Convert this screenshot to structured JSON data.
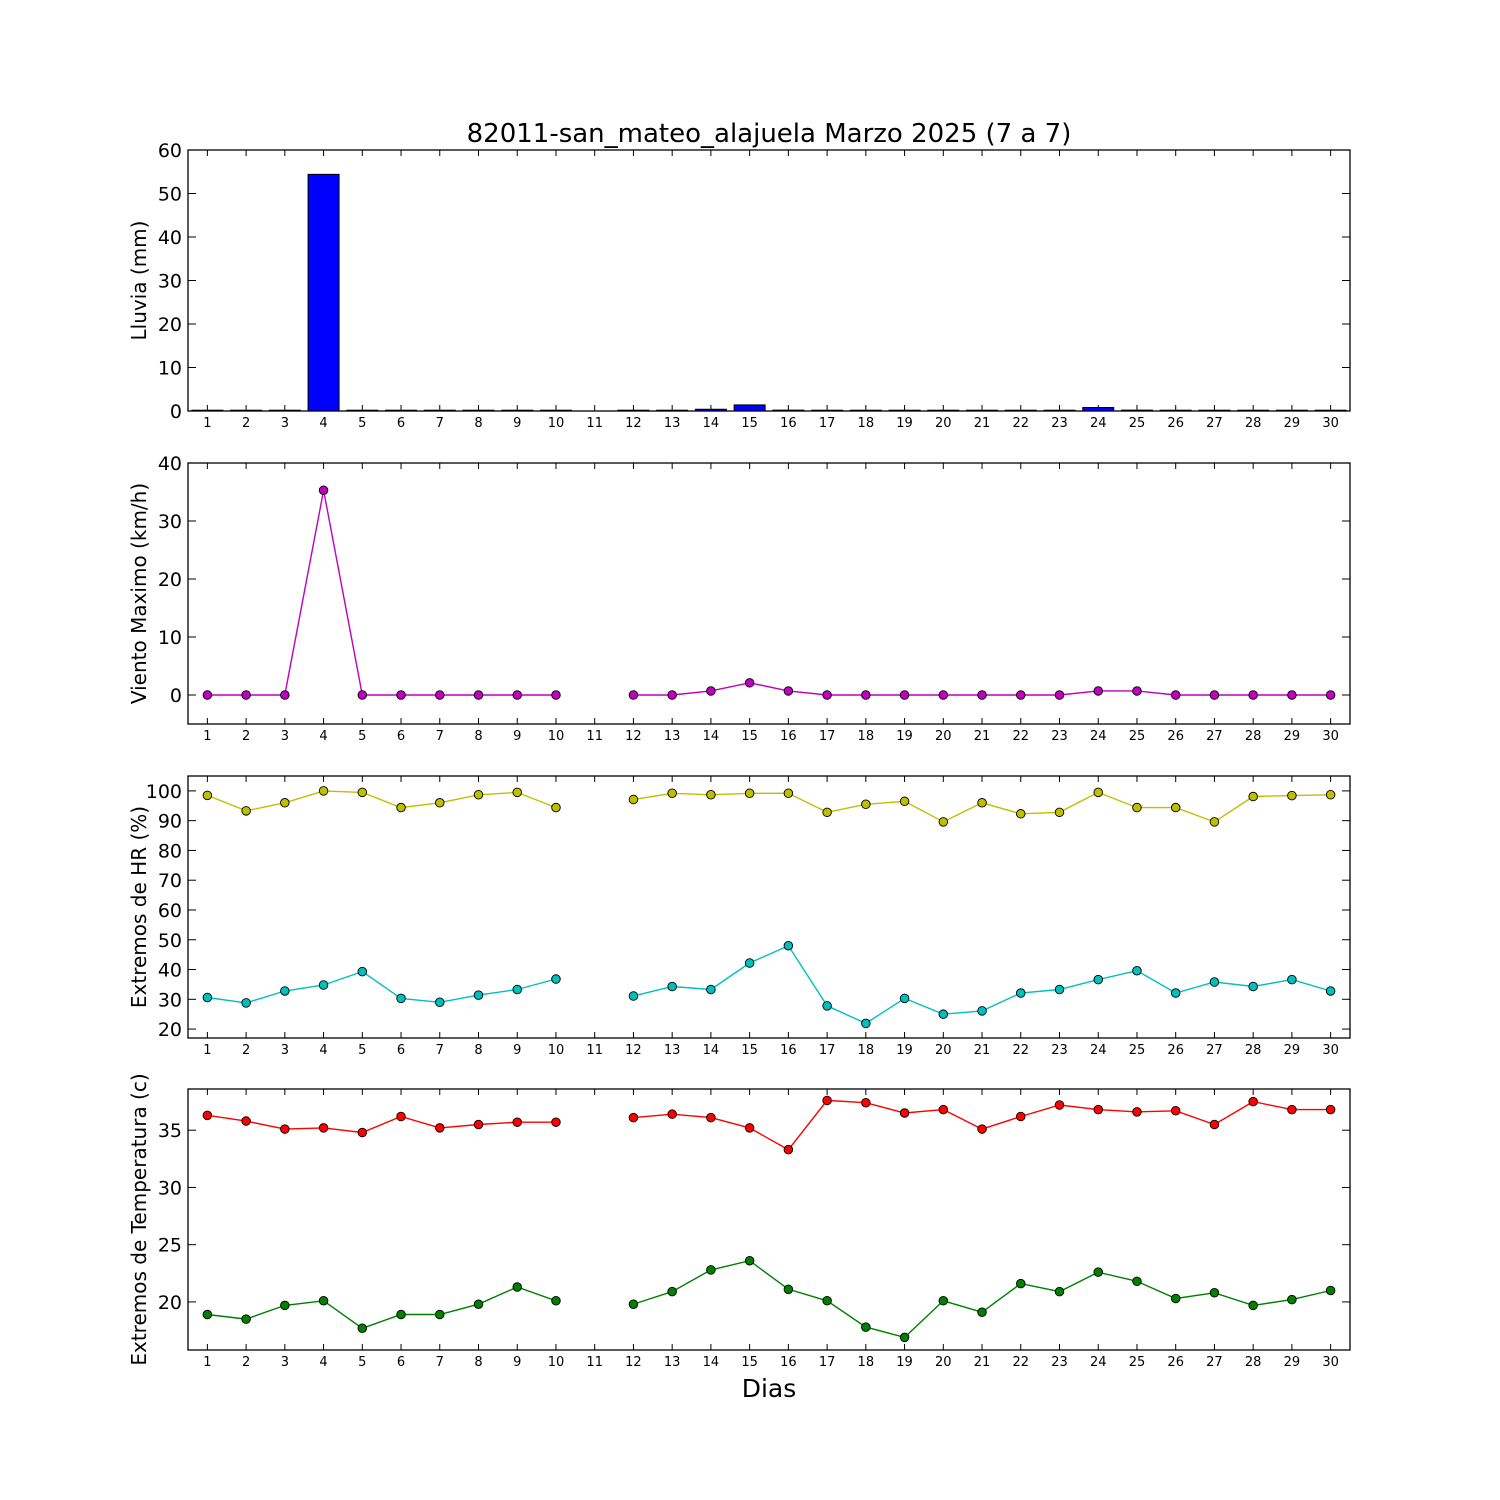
{
  "title": "82011-san_mateo_alajuela Marzo 2025  (7 a 7)",
  "xlabel": "Dias",
  "chart_data": [
    {
      "type": "bar",
      "ylabel": "Lluvia (mm)",
      "ylim": [
        0,
        60
      ],
      "yticks": [
        0,
        10,
        20,
        30,
        40,
        50,
        60
      ],
      "x": [
        1,
        2,
        3,
        4,
        5,
        6,
        7,
        8,
        9,
        10,
        11,
        12,
        13,
        14,
        15,
        16,
        17,
        18,
        19,
        20,
        21,
        22,
        23,
        24,
        25,
        26,
        27,
        28,
        29,
        30
      ],
      "xlim": [
        0.5,
        30.5
      ],
      "series": [
        {
          "color": "#0000ff",
          "values": [
            0,
            0,
            0,
            54.4,
            0,
            0,
            0,
            0,
            0,
            0,
            null,
            0,
            0,
            0.4,
            1.4,
            0.2,
            0,
            0,
            0,
            0,
            0,
            0,
            0,
            0.8,
            0.2,
            0,
            0,
            0,
            0,
            0
          ]
        }
      ]
    },
    {
      "type": "line",
      "ylabel": "Viento Maximo (km/h)",
      "ylim": [
        -5,
        40
      ],
      "yticks": [
        0,
        10,
        20,
        30,
        40
      ],
      "x": [
        1,
        2,
        3,
        4,
        5,
        6,
        7,
        8,
        9,
        10,
        11,
        12,
        13,
        14,
        15,
        16,
        17,
        18,
        19,
        20,
        21,
        22,
        23,
        24,
        25,
        26,
        27,
        28,
        29,
        30
      ],
      "xlim": [
        0.5,
        30.5
      ],
      "series": [
        {
          "color": "#bf00bf",
          "values": [
            0,
            0,
            0,
            35.3,
            0,
            0,
            0,
            0,
            0,
            0,
            null,
            0,
            0,
            0.7,
            2.1,
            0.7,
            0,
            0,
            0,
            0,
            0,
            0,
            0,
            0.7,
            0.7,
            0,
            0,
            0,
            0,
            0
          ]
        }
      ]
    },
    {
      "type": "line",
      "ylabel": "Extremos de HR (%)",
      "ylim": [
        17,
        105
      ],
      "yticks": [
        20,
        30,
        40,
        50,
        60,
        70,
        80,
        90,
        100
      ],
      "x": [
        1,
        2,
        3,
        4,
        5,
        6,
        7,
        8,
        9,
        10,
        11,
        12,
        13,
        14,
        15,
        16,
        17,
        18,
        19,
        20,
        21,
        22,
        23,
        24,
        25,
        26,
        27,
        28,
        29,
        30
      ],
      "xlim": [
        0.5,
        30.5
      ],
      "series": [
        {
          "color": "#bfbf00",
          "values": [
            98.5,
            93.3,
            96,
            100,
            99.5,
            94.4,
            96,
            98.7,
            99.5,
            94.4,
            null,
            97.1,
            99.2,
            98.7,
            99.2,
            99.2,
            92.8,
            95.5,
            96.5,
            89.6,
            96,
            92.3,
            92.8,
            99.5,
            94.4,
            94.4,
            89.6,
            98.1,
            98.4,
            98.7
          ]
        },
        {
          "color": "#00bfbf",
          "values": [
            30.6,
            28.8,
            32.8,
            34.8,
            39.3,
            30.3,
            29,
            31.4,
            33.3,
            36.8,
            null,
            31.1,
            34.3,
            33.3,
            42.2,
            48,
            27.8,
            21.9,
            30.3,
            25,
            26.1,
            32.1,
            33.3,
            36.6,
            39.6,
            32.1,
            35.8,
            34.3,
            36.6,
            32.8
          ]
        }
      ]
    },
    {
      "type": "line",
      "ylabel": "Extremos de Temperatura (c)",
      "ylim": [
        15.8,
        38.6
      ],
      "yticks": [
        20,
        25,
        30,
        35
      ],
      "x": [
        1,
        2,
        3,
        4,
        5,
        6,
        7,
        8,
        9,
        10,
        11,
        12,
        13,
        14,
        15,
        16,
        17,
        18,
        19,
        20,
        21,
        22,
        23,
        24,
        25,
        26,
        27,
        28,
        29,
        30
      ],
      "xlim": [
        0.5,
        30.5
      ],
      "series": [
        {
          "color": "#ff0000",
          "values": [
            36.3,
            35.8,
            35.1,
            35.2,
            34.8,
            36.2,
            35.2,
            35.5,
            35.7,
            35.7,
            null,
            36.1,
            36.4,
            36.1,
            35.2,
            33.3,
            37.6,
            37.4,
            36.5,
            36.8,
            35.1,
            36.2,
            37.2,
            36.8,
            36.6,
            36.7,
            35.5,
            37.5,
            36.8,
            36.8
          ]
        },
        {
          "color": "#007f00",
          "values": [
            18.9,
            18.5,
            19.7,
            20.1,
            17.7,
            18.9,
            18.9,
            19.8,
            21.3,
            20.1,
            null,
            19.8,
            20.9,
            22.8,
            23.6,
            21.1,
            20.1,
            17.8,
            16.9,
            20.1,
            19.1,
            21.6,
            20.9,
            22.6,
            21.8,
            20.3,
            20.8,
            19.7,
            20.2,
            21
          ]
        }
      ]
    }
  ]
}
